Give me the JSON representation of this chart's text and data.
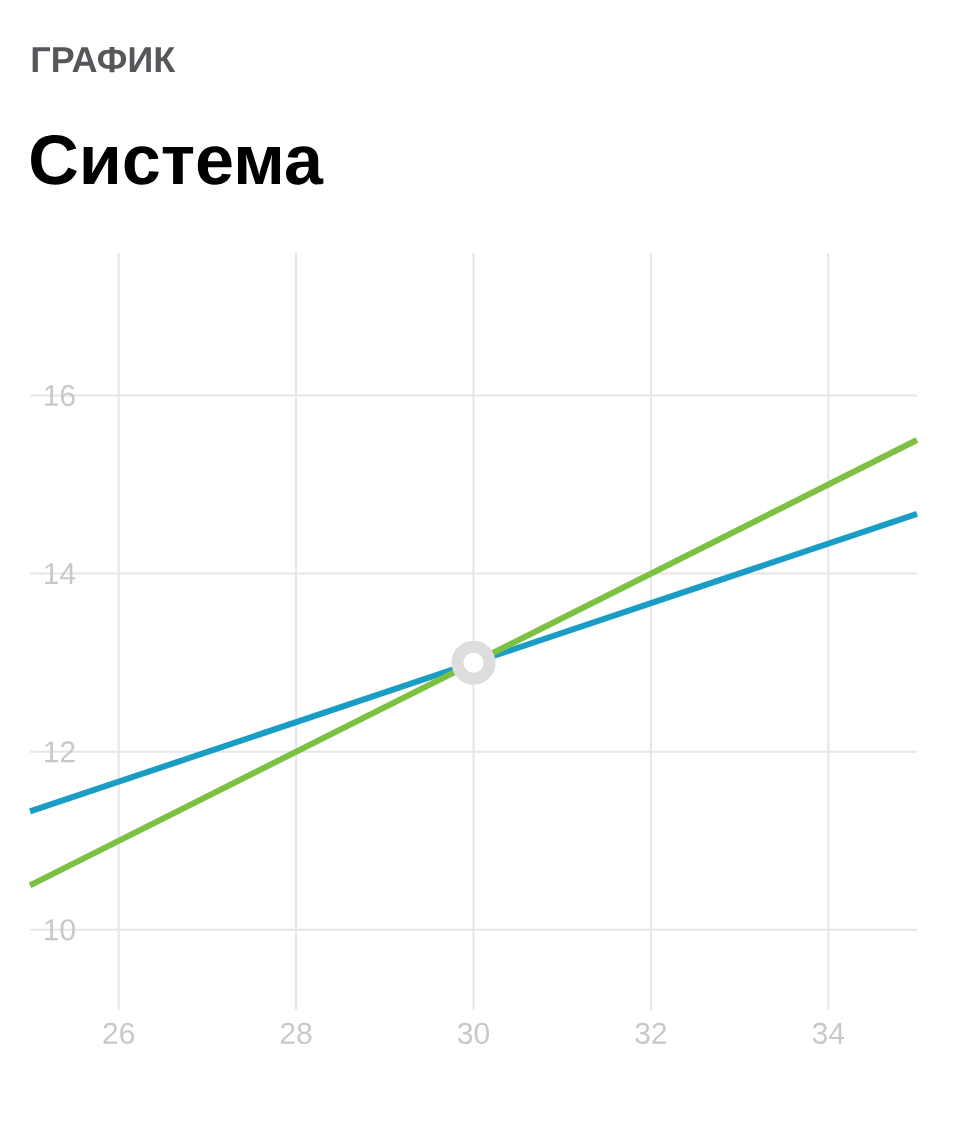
{
  "chart_data": {
    "type": "line",
    "subtitle": "ГРАФИК",
    "title": "Система",
    "xlim": [
      25,
      35
    ],
    "ylim": [
      9.1,
      17.6
    ],
    "xticks": [
      26,
      28,
      30,
      32,
      34
    ],
    "yticks": [
      10,
      12,
      14,
      16
    ],
    "grid": true,
    "series": [
      {
        "color": "#1a9dc4",
        "x": [
          25,
          35
        ],
        "values": [
          11.33,
          14.67
        ]
      },
      {
        "color": "#7dc142",
        "x": [
          25,
          35
        ],
        "values": [
          10.5,
          15.5
        ]
      },
      {
        "type": "scatter",
        "marker": "circle",
        "color": "#ffffff",
        "x": [
          30
        ],
        "values": [
          13
        ]
      }
    ]
  }
}
